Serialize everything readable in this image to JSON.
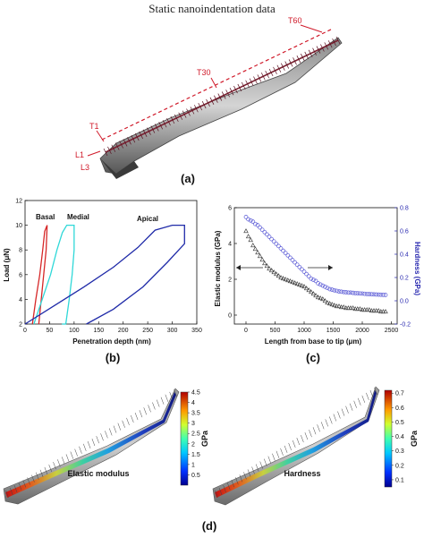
{
  "page_title": "Static nanoindentation data",
  "panel_labels": {
    "a": "(a)",
    "b": "(b)",
    "c": "(c)",
    "d": "(d)"
  },
  "markers": {
    "t60": "T60",
    "t30": "T30",
    "t1": "T1",
    "l1": "L1",
    "l3": "L3"
  },
  "colors": {
    "marker_red": "#d01a2a",
    "basal": "#d62728",
    "medial": "#2fd8d8",
    "apical": "#1f2aa8",
    "modulus_marker": "#333333",
    "hardness_marker": "#5a5ad6"
  },
  "chart_data": [
    {
      "type": "line",
      "panel": "b",
      "xlabel": "Penetration depth (nm)",
      "ylabel": "Load (μN)",
      "xlim": [
        0,
        350
      ],
      "ylim": [
        2,
        12
      ],
      "xticks": [
        0,
        50,
        100,
        150,
        200,
        250,
        300,
        350
      ],
      "yticks": [
        2,
        4,
        6,
        8,
        10,
        12
      ],
      "series": [
        {
          "name": "Basal",
          "x": [
            15,
            22,
            30,
            36,
            40,
            45,
            45,
            43,
            38,
            33,
            28
          ],
          "y": [
            2,
            4,
            6,
            8,
            9.5,
            10,
            10,
            8,
            6,
            4,
            2
          ]
        },
        {
          "name": "Medial",
          "x": [
            18,
            35,
            52,
            65,
            76,
            85,
            100,
            100,
            96,
            90,
            83,
            75
          ],
          "y": [
            2,
            4,
            6,
            8,
            9.4,
            10,
            10,
            8,
            6,
            4,
            2,
            2
          ]
        },
        {
          "name": "Apical",
          "x": [
            0,
            60,
            120,
            180,
            230,
            265,
            300,
            325,
            325,
            290,
            240,
            180,
            125
          ],
          "y": [
            2,
            3.5,
            5,
            6.6,
            8.2,
            9.6,
            10,
            10,
            8.5,
            7,
            5,
            3.2,
            2
          ]
        }
      ]
    },
    {
      "type": "scatter",
      "panel": "c",
      "xlabel": "Length from base to tip (μm)",
      "ylabel": "Elastic modulus (GPa)",
      "y2label": "Hardness (GPa)",
      "xlim": [
        -200,
        2600
      ],
      "ylim": [
        -0.5,
        6
      ],
      "y2lim": [
        -0.2,
        0.8
      ],
      "xticks": [
        0,
        500,
        1000,
        1500,
        2000,
        2500
      ],
      "yticks": [
        0,
        2,
        4,
        6
      ],
      "y2ticks": [
        -0.2,
        0.0,
        0.2,
        0.4,
        0.6,
        0.8
      ],
      "series": [
        {
          "name": "Elastic modulus",
          "axis": "left",
          "marker": "triangle",
          "x": [
            0,
            40,
            80,
            120,
            160,
            200,
            240,
            280,
            320,
            360,
            400,
            440,
            480,
            520,
            560,
            600,
            640,
            680,
            720,
            760,
            800,
            840,
            880,
            920,
            960,
            1000,
            1040,
            1080,
            1120,
            1160,
            1200,
            1240,
            1280,
            1320,
            1360,
            1400,
            1440,
            1480,
            1520,
            1560,
            1600,
            1640,
            1680,
            1720,
            1760,
            1800,
            1840,
            1880,
            1920,
            1960,
            2000,
            2040,
            2080,
            2120,
            2160,
            2200,
            2240,
            2280,
            2320,
            2360,
            2400
          ],
          "y": [
            4.7,
            4.4,
            4.2,
            3.9,
            3.7,
            3.5,
            3.3,
            3.1,
            2.9,
            2.75,
            2.6,
            2.5,
            2.4,
            2.3,
            2.2,
            2.1,
            2.05,
            2.0,
            1.95,
            1.9,
            1.85,
            1.8,
            1.75,
            1.7,
            1.65,
            1.6,
            1.5,
            1.4,
            1.3,
            1.2,
            1.1,
            1.0,
            0.95,
            0.9,
            0.8,
            0.7,
            0.65,
            0.6,
            0.55,
            0.5,
            0.5,
            0.45,
            0.45,
            0.4,
            0.4,
            0.4,
            0.4,
            0.35,
            0.35,
            0.35,
            0.3,
            0.3,
            0.3,
            0.3,
            0.25,
            0.25,
            0.25,
            0.25,
            0.2,
            0.2,
            0.2
          ]
        },
        {
          "name": "Hardness",
          "axis": "right",
          "marker": "circle",
          "x": [
            0,
            40,
            80,
            120,
            160,
            200,
            240,
            280,
            320,
            360,
            400,
            440,
            480,
            520,
            560,
            600,
            640,
            680,
            720,
            760,
            800,
            840,
            880,
            920,
            960,
            1000,
            1040,
            1080,
            1120,
            1160,
            1200,
            1240,
            1280,
            1320,
            1360,
            1400,
            1440,
            1480,
            1520,
            1560,
            1600,
            1640,
            1680,
            1720,
            1760,
            1800,
            1840,
            1880,
            1920,
            1960,
            2000,
            2040,
            2080,
            2120,
            2160,
            2200,
            2240,
            2280,
            2320,
            2360,
            2400
          ],
          "y": [
            0.72,
            0.7,
            0.69,
            0.68,
            0.66,
            0.65,
            0.63,
            0.61,
            0.59,
            0.57,
            0.55,
            0.53,
            0.51,
            0.49,
            0.47,
            0.45,
            0.43,
            0.41,
            0.39,
            0.37,
            0.35,
            0.33,
            0.31,
            0.29,
            0.27,
            0.25,
            0.23,
            0.21,
            0.19,
            0.18,
            0.17,
            0.15,
            0.14,
            0.13,
            0.12,
            0.11,
            0.1,
            0.095,
            0.09,
            0.085,
            0.08,
            0.078,
            0.075,
            0.073,
            0.07,
            0.07,
            0.068,
            0.066,
            0.065,
            0.063,
            0.062,
            0.06,
            0.058,
            0.057,
            0.056,
            0.055,
            0.054,
            0.053,
            0.052,
            0.051,
            0.05
          ]
        }
      ]
    },
    {
      "type": "heatmap",
      "panel": "d",
      "label": "Elastic modulus",
      "colorbar_label": "GPa",
      "colorbar_range": [
        0,
        4.5
      ],
      "colorbar_ticks": [
        "0.5",
        "1",
        "1.5",
        "2",
        "2.5",
        "3",
        "3.5",
        "4",
        "4.5"
      ],
      "colorbar_tick_values": [
        0.5,
        1,
        1.5,
        2,
        2.5,
        3,
        3.5,
        4,
        4.5
      ]
    },
    {
      "type": "heatmap",
      "panel": "d",
      "label": "Hardness",
      "colorbar_label": "GPa",
      "colorbar_range": [
        0.05,
        0.72
      ],
      "colorbar_ticks": [
        "0.1",
        "0.2",
        "0.3",
        "0.4",
        "0.5",
        "0.6",
        "0.7"
      ],
      "colorbar_tick_values": [
        0.1,
        0.2,
        0.3,
        0.4,
        0.5,
        0.6,
        0.7
      ]
    }
  ]
}
